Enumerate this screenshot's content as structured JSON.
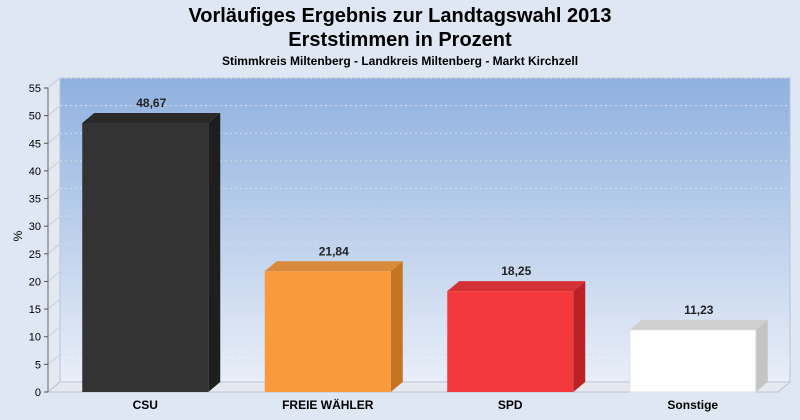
{
  "header": {
    "title_line1": "Vorläufiges Ergebnis zur Landtagswahl 2013",
    "title_line2": "Erststimmen in Prozent",
    "subtitle": "Stimmkreis Miltenberg - Landkreis Miltenberg - Markt Kirchzell"
  },
  "chart_data": {
    "type": "bar",
    "title": "Vorläufiges Ergebnis zur Landtagswahl 2013",
    "subtitle": "Erststimmen in Prozent",
    "caption": "Stimmkreis Miltenberg - Landkreis Miltenberg - Markt Kirchzell",
    "xlabel": "",
    "ylabel": "%",
    "ylim": [
      0,
      55
    ],
    "yticks": [
      0,
      5,
      10,
      15,
      20,
      25,
      30,
      35,
      40,
      45,
      50,
      55
    ],
    "grid": true,
    "categories": [
      "CSU",
      "FREIE WÄHLER",
      "SPD",
      "Sonstige"
    ],
    "values": [
      48.67,
      21.84,
      18.25,
      11.23
    ],
    "value_labels": [
      "48,67",
      "21,84",
      "18,25",
      "11,23"
    ],
    "colors": [
      "#333333",
      "#f99a3c",
      "#f4393c",
      "#ffffff"
    ],
    "side_colors": [
      "#1e1e1e",
      "#c57422",
      "#bb2226",
      "#c4c4c4"
    ],
    "top_colors": [
      "#2a2a2a",
      "#d98a3a",
      "#d43236",
      "#cfcfcf"
    ],
    "plot_background_top": "#8fb1df",
    "plot_background_bottom": "#e9eef8"
  }
}
